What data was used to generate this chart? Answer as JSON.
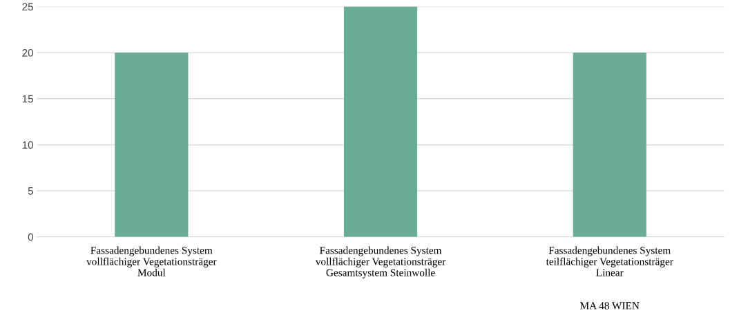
{
  "chart_data": {
    "type": "bar",
    "categories": [
      "Fassadengebundenes System\nvollflächiger Vegetationsträger\nModul",
      "Fassadengebundenes System\nvollflächiger Vegetationsträger\nGesamtsystem Steinwolle",
      "Fassadengebundenes System\nteilflächiger Vegetationsträger\nLinear\n\n\nMA 48 WIEN"
    ],
    "values": [
      20,
      25,
      20
    ],
    "color": "#6aad96",
    "ylim": [
      0,
      25
    ],
    "yticks": [
      0,
      5,
      10,
      15,
      20,
      25
    ],
    "grid": "y",
    "legend": false
  }
}
